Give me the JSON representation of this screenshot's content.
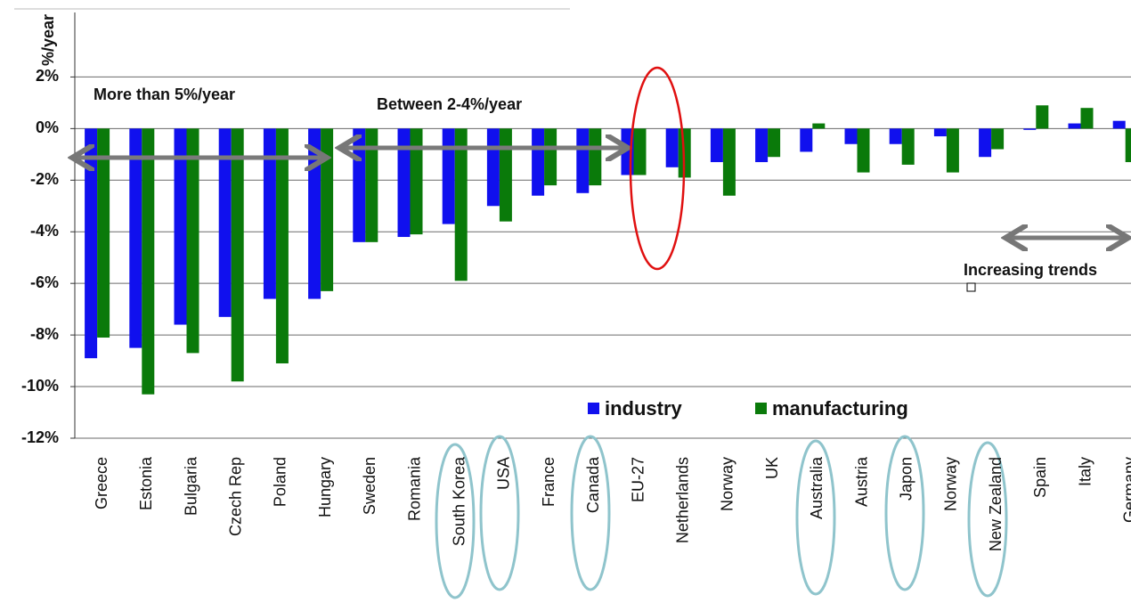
{
  "chart_data": {
    "type": "bar",
    "y_label": "%/year",
    "categories": [
      "Greece",
      "Estonia",
      "Bulgaria",
      "Czech Rep",
      "Poland",
      "Hungary",
      "Sweden",
      "Romania",
      "South Korea",
      "USA",
      "France",
      "Canada",
      "EU-27",
      "Netherlands",
      "Norway",
      "UK",
      "Australia",
      "Austria",
      "Japon",
      "Norway",
      "New Zealand",
      "Spain",
      "Italy",
      "Germany"
    ],
    "series": [
      {
        "name": "industry",
        "color": "#1010ee",
        "values": [
          -8.9,
          -8.5,
          -7.6,
          -7.3,
          -6.6,
          -6.6,
          -4.4,
          -4.2,
          -3.7,
          -3.0,
          -2.6,
          -2.5,
          -1.8,
          -1.5,
          -1.3,
          -1.3,
          -0.9,
          -0.6,
          -0.6,
          -0.3,
          -1.1,
          -0.05,
          0.2,
          0.3
        ]
      },
      {
        "name": "manufacturing",
        "color": "#0a7a0a",
        "values": [
          -8.1,
          -10.3,
          -8.7,
          -9.8,
          -9.1,
          -6.3,
          -4.4,
          -4.1,
          -5.9,
          -3.6,
          -2.2,
          -2.2,
          -1.8,
          -1.9,
          -2.6,
          -1.1,
          0.2,
          -1.7,
          -1.4,
          -1.7,
          -0.8,
          0.9,
          0.8,
          -1.3
        ]
      }
    ],
    "ylim": [
      -12,
      4.5
    ],
    "yticks": [
      {
        "value": 2,
        "label": "2%"
      },
      {
        "value": 0,
        "label": "0%"
      },
      {
        "value": -2,
        "label": "-2%"
      },
      {
        "value": -4,
        "label": "-4%"
      },
      {
        "value": -6,
        "label": "-6%"
      },
      {
        "value": -8,
        "label": "-8%"
      },
      {
        "value": -10,
        "label": "-10%"
      },
      {
        "value": -12,
        "label": "-12%"
      }
    ],
    "grid": true,
    "annotations": [
      "More than 5%/year",
      "Between 2-4%/year",
      "Increasing trends"
    ]
  }
}
